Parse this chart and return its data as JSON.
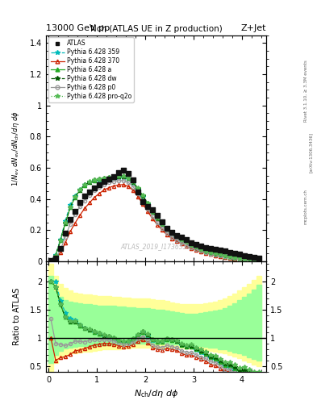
{
  "title_top": "13000 GeV pp",
  "title_right": "Z+Jet",
  "plot_title": "Nch (ATLAS UE in Z production)",
  "ylabel_main": "1/N_ev dN_ev/dN_ch/dη dφ",
  "ylabel_ratio": "Ratio to ATLAS",
  "xlabel": "N_{ch}/dη dφ",
  "watermark": "ATLAS_2019_I1736531",
  "rivet_label": "Rivet 3.1.10, ≥ 3.3M events",
  "arxiv_label": "[arXiv:1306.3436]",
  "mcplots_label": "mcplots.cern.ch",
  "ylim_main": [
    0,
    1.45
  ],
  "ylim_ratio": [
    0.4,
    2.35
  ],
  "xlim": [
    -0.05,
    4.5
  ],
  "yticks_main": [
    0.0,
    0.2,
    0.4,
    0.6,
    0.8,
    1.0,
    1.2,
    1.4
  ],
  "yticks_ratio": [
    0.5,
    1.0,
    1.5,
    2.0
  ],
  "xticks": [
    0,
    1,
    2,
    3,
    4
  ],
  "atlas_x": [
    0.05,
    0.15,
    0.25,
    0.35,
    0.45,
    0.55,
    0.65,
    0.75,
    0.85,
    0.95,
    1.05,
    1.15,
    1.25,
    1.35,
    1.45,
    1.55,
    1.65,
    1.75,
    1.85,
    1.95,
    2.05,
    2.15,
    2.25,
    2.35,
    2.45,
    2.55,
    2.65,
    2.75,
    2.85,
    2.95,
    3.05,
    3.15,
    3.25,
    3.35,
    3.45,
    3.55,
    3.65,
    3.75,
    3.85,
    3.95,
    4.05,
    4.15,
    4.25,
    4.35
  ],
  "atlas_y": [
    0.003,
    0.02,
    0.085,
    0.18,
    0.27,
    0.32,
    0.375,
    0.42,
    0.445,
    0.47,
    0.49,
    0.51,
    0.525,
    0.545,
    0.57,
    0.585,
    0.565,
    0.52,
    0.445,
    0.38,
    0.35,
    0.33,
    0.295,
    0.255,
    0.21,
    0.185,
    0.165,
    0.155,
    0.14,
    0.12,
    0.11,
    0.1,
    0.09,
    0.085,
    0.075,
    0.07,
    0.065,
    0.055,
    0.05,
    0.045,
    0.035,
    0.03,
    0.025,
    0.02
  ],
  "p359_x": [
    0.05,
    0.15,
    0.25,
    0.35,
    0.45,
    0.55,
    0.65,
    0.75,
    0.85,
    0.95,
    1.05,
    1.15,
    1.25,
    1.35,
    1.45,
    1.55,
    1.65,
    1.75,
    1.85,
    1.95,
    2.05,
    2.15,
    2.25,
    2.35,
    2.45,
    2.55,
    2.65,
    2.75,
    2.85,
    2.95,
    3.05,
    3.15,
    3.25,
    3.35,
    3.45,
    3.55,
    3.65,
    3.75,
    3.85,
    3.95,
    4.05,
    4.15,
    4.25,
    4.35
  ],
  "p359_y": [
    0.006,
    0.04,
    0.14,
    0.26,
    0.36,
    0.42,
    0.46,
    0.49,
    0.505,
    0.515,
    0.52,
    0.525,
    0.53,
    0.535,
    0.538,
    0.538,
    0.525,
    0.5,
    0.46,
    0.415,
    0.365,
    0.315,
    0.272,
    0.235,
    0.202,
    0.176,
    0.154,
    0.134,
    0.118,
    0.1,
    0.086,
    0.074,
    0.063,
    0.054,
    0.046,
    0.039,
    0.032,
    0.026,
    0.021,
    0.017,
    0.013,
    0.01,
    0.008,
    0.005
  ],
  "p370_x": [
    0.05,
    0.15,
    0.25,
    0.35,
    0.45,
    0.55,
    0.65,
    0.75,
    0.85,
    0.95,
    1.05,
    1.15,
    1.25,
    1.35,
    1.45,
    1.55,
    1.65,
    1.75,
    1.85,
    1.95,
    2.05,
    2.15,
    2.25,
    2.35,
    2.45,
    2.55,
    2.65,
    2.75,
    2.85,
    2.95,
    3.05,
    3.15,
    3.25,
    3.35,
    3.45,
    3.55,
    3.65,
    3.75,
    3.85,
    3.95,
    4.05,
    4.15,
    4.25,
    4.35
  ],
  "p370_y": [
    0.003,
    0.012,
    0.055,
    0.12,
    0.19,
    0.245,
    0.295,
    0.34,
    0.375,
    0.41,
    0.435,
    0.458,
    0.472,
    0.483,
    0.49,
    0.492,
    0.48,
    0.455,
    0.415,
    0.368,
    0.32,
    0.274,
    0.235,
    0.2,
    0.17,
    0.147,
    0.128,
    0.112,
    0.097,
    0.084,
    0.072,
    0.062,
    0.053,
    0.045,
    0.038,
    0.032,
    0.027,
    0.022,
    0.018,
    0.014,
    0.011,
    0.009,
    0.007,
    0.005
  ],
  "pa_x": [
    0.05,
    0.15,
    0.25,
    0.35,
    0.45,
    0.55,
    0.65,
    0.75,
    0.85,
    0.95,
    1.05,
    1.15,
    1.25,
    1.35,
    1.45,
    1.55,
    1.65,
    1.75,
    1.85,
    1.95,
    2.05,
    2.15,
    2.25,
    2.35,
    2.45,
    2.55,
    2.65,
    2.75,
    2.85,
    2.95,
    3.05,
    3.15,
    3.25,
    3.35,
    3.45,
    3.55,
    3.65,
    3.75,
    3.85,
    3.95,
    4.05,
    4.15,
    4.25,
    4.35
  ],
  "pa_y": [
    0.006,
    0.038,
    0.135,
    0.245,
    0.345,
    0.41,
    0.455,
    0.488,
    0.505,
    0.518,
    0.525,
    0.53,
    0.535,
    0.54,
    0.543,
    0.543,
    0.53,
    0.505,
    0.465,
    0.418,
    0.368,
    0.317,
    0.273,
    0.236,
    0.203,
    0.176,
    0.154,
    0.135,
    0.118,
    0.101,
    0.087,
    0.075,
    0.064,
    0.055,
    0.047,
    0.04,
    0.033,
    0.027,
    0.022,
    0.018,
    0.014,
    0.011,
    0.008,
    0.006
  ],
  "pdw_x": [
    0.05,
    0.15,
    0.25,
    0.35,
    0.45,
    0.55,
    0.65,
    0.75,
    0.85,
    0.95,
    1.05,
    1.15,
    1.25,
    1.35,
    1.45,
    1.55,
    1.65,
    1.75,
    1.85,
    1.95,
    2.05,
    2.15,
    2.25,
    2.35,
    2.45,
    2.55,
    2.65,
    2.75,
    2.85,
    2.95,
    3.05,
    3.15,
    3.25,
    3.35,
    3.45,
    3.55,
    3.65,
    3.75,
    3.85,
    3.95,
    4.05,
    4.15,
    4.25,
    4.35
  ],
  "pdw_y": [
    0.006,
    0.038,
    0.135,
    0.245,
    0.346,
    0.412,
    0.457,
    0.49,
    0.508,
    0.52,
    0.527,
    0.532,
    0.537,
    0.542,
    0.545,
    0.545,
    0.532,
    0.508,
    0.467,
    0.42,
    0.37,
    0.319,
    0.275,
    0.238,
    0.205,
    0.178,
    0.156,
    0.137,
    0.12,
    0.103,
    0.089,
    0.077,
    0.066,
    0.057,
    0.049,
    0.042,
    0.035,
    0.029,
    0.024,
    0.019,
    0.015,
    0.012,
    0.009,
    0.007
  ],
  "pp0_x": [
    0.05,
    0.15,
    0.25,
    0.35,
    0.45,
    0.55,
    0.65,
    0.75,
    0.85,
    0.95,
    1.05,
    1.15,
    1.25,
    1.35,
    1.45,
    1.55,
    1.65,
    1.75,
    1.85,
    1.95,
    2.05,
    2.15,
    2.25,
    2.35,
    2.45,
    2.55,
    2.65,
    2.75,
    2.85,
    2.95,
    3.05,
    3.15,
    3.25,
    3.35,
    3.45,
    3.55,
    3.65,
    3.75,
    3.85,
    3.95,
    4.05,
    4.15,
    4.25,
    4.35
  ],
  "pp0_y": [
    0.004,
    0.018,
    0.075,
    0.155,
    0.24,
    0.3,
    0.35,
    0.39,
    0.425,
    0.455,
    0.475,
    0.492,
    0.505,
    0.513,
    0.518,
    0.518,
    0.505,
    0.478,
    0.435,
    0.386,
    0.336,
    0.288,
    0.247,
    0.212,
    0.181,
    0.156,
    0.136,
    0.119,
    0.104,
    0.089,
    0.077,
    0.066,
    0.057,
    0.049,
    0.042,
    0.035,
    0.029,
    0.024,
    0.019,
    0.016,
    0.013,
    0.01,
    0.008,
    0.006
  ],
  "pproq2o_x": [
    0.05,
    0.15,
    0.25,
    0.35,
    0.45,
    0.55,
    0.65,
    0.75,
    0.85,
    0.95,
    1.05,
    1.15,
    1.25,
    1.35,
    1.45,
    1.55,
    1.65,
    1.75,
    1.85,
    1.95,
    2.05,
    2.15,
    2.25,
    2.35,
    2.45,
    2.55,
    2.65,
    2.75,
    2.85,
    2.95,
    3.05,
    3.15,
    3.25,
    3.35,
    3.45,
    3.55,
    3.65,
    3.75,
    3.85,
    3.95,
    4.05,
    4.15,
    4.25,
    4.35
  ],
  "pproq2o_y": [
    0.006,
    0.038,
    0.136,
    0.247,
    0.348,
    0.414,
    0.459,
    0.492,
    0.51,
    0.522,
    0.529,
    0.534,
    0.539,
    0.544,
    0.547,
    0.547,
    0.534,
    0.51,
    0.469,
    0.422,
    0.372,
    0.321,
    0.277,
    0.24,
    0.207,
    0.18,
    0.158,
    0.139,
    0.122,
    0.105,
    0.091,
    0.079,
    0.068,
    0.059,
    0.051,
    0.044,
    0.037,
    0.031,
    0.026,
    0.021,
    0.017,
    0.013,
    0.01,
    0.008
  ],
  "yellow_band_xleft": [
    0.0,
    0.1,
    0.2,
    0.3,
    0.4,
    0.5,
    0.6,
    0.7,
    0.8,
    0.9,
    1.0,
    1.1,
    1.2,
    1.3,
    1.4,
    1.5,
    1.6,
    1.7,
    1.8,
    1.9,
    2.0,
    2.1,
    2.2,
    2.3,
    2.4,
    2.5,
    2.6,
    2.7,
    2.8,
    2.9,
    3.0,
    3.1,
    3.2,
    3.3,
    3.4,
    3.5,
    3.6,
    3.7,
    3.8,
    3.9,
    4.0,
    4.1,
    4.2,
    4.3
  ],
  "yellow_band_ylo": [
    0.41,
    0.55,
    0.65,
    0.7,
    0.72,
    0.73,
    0.74,
    0.75,
    0.76,
    0.77,
    0.78,
    0.79,
    0.79,
    0.8,
    0.8,
    0.81,
    0.81,
    0.82,
    0.82,
    0.82,
    0.82,
    0.83,
    0.83,
    0.83,
    0.83,
    0.83,
    0.82,
    0.82,
    0.81,
    0.81,
    0.8,
    0.79,
    0.78,
    0.77,
    0.76,
    0.74,
    0.72,
    0.7,
    0.67,
    0.64,
    0.6,
    0.57,
    0.53,
    0.5
  ],
  "yellow_band_yhi": [
    2.3,
    2.1,
    1.95,
    1.88,
    1.83,
    1.8,
    1.78,
    1.77,
    1.76,
    1.75,
    1.74,
    1.73,
    1.73,
    1.72,
    1.72,
    1.71,
    1.71,
    1.7,
    1.7,
    1.7,
    1.69,
    1.68,
    1.67,
    1.66,
    1.65,
    1.63,
    1.61,
    1.6,
    1.59,
    1.59,
    1.59,
    1.6,
    1.61,
    1.62,
    1.64,
    1.67,
    1.7,
    1.74,
    1.78,
    1.83,
    1.89,
    1.95,
    2.02,
    2.1
  ],
  "green_band_xleft": [
    0.0,
    0.1,
    0.2,
    0.3,
    0.4,
    0.5,
    0.6,
    0.7,
    0.8,
    0.9,
    1.0,
    1.1,
    1.2,
    1.3,
    1.4,
    1.5,
    1.6,
    1.7,
    1.8,
    1.9,
    2.0,
    2.1,
    2.2,
    2.3,
    2.4,
    2.5,
    2.6,
    2.7,
    2.8,
    2.9,
    3.0,
    3.1,
    3.2,
    3.3,
    3.4,
    3.5,
    3.6,
    3.7,
    3.8,
    3.9,
    4.0,
    4.1,
    4.2,
    4.3
  ],
  "green_band_ylo": [
    0.55,
    0.7,
    0.77,
    0.81,
    0.83,
    0.84,
    0.85,
    0.86,
    0.86,
    0.87,
    0.87,
    0.87,
    0.88,
    0.88,
    0.88,
    0.88,
    0.88,
    0.89,
    0.89,
    0.89,
    0.89,
    0.89,
    0.89,
    0.89,
    0.89,
    0.88,
    0.88,
    0.87,
    0.87,
    0.86,
    0.86,
    0.85,
    0.84,
    0.83,
    0.82,
    0.8,
    0.79,
    0.77,
    0.74,
    0.72,
    0.69,
    0.66,
    0.63,
    0.6
  ],
  "green_band_yhi": [
    2.1,
    1.82,
    1.72,
    1.67,
    1.64,
    1.62,
    1.61,
    1.6,
    1.59,
    1.58,
    1.57,
    1.57,
    1.56,
    1.56,
    1.55,
    1.55,
    1.54,
    1.54,
    1.53,
    1.53,
    1.52,
    1.51,
    1.5,
    1.49,
    1.48,
    1.46,
    1.45,
    1.44,
    1.43,
    1.43,
    1.43,
    1.44,
    1.45,
    1.46,
    1.48,
    1.5,
    1.53,
    1.57,
    1.61,
    1.66,
    1.72,
    1.78,
    1.85,
    1.93
  ],
  "color_359": "#00BBBB",
  "color_370": "#CC2200",
  "color_a": "#22AA22",
  "color_dw": "#005500",
  "color_p0": "#999999",
  "color_proq2o": "#55BB55",
  "color_atlas": "#111111",
  "color_yellow": "#FFFF99",
  "color_green": "#99FF99",
  "background_color": "#ffffff"
}
